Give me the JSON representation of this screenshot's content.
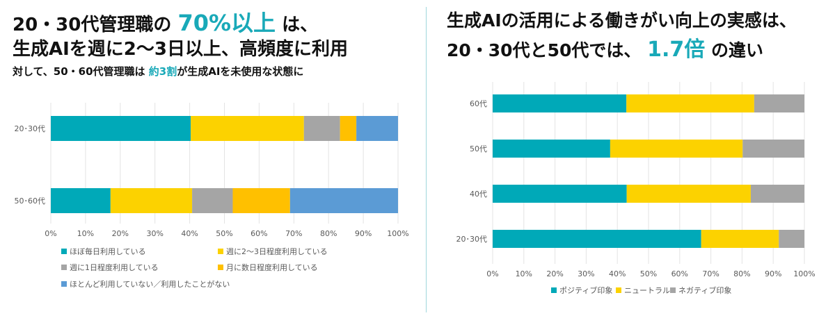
{
  "left": {
    "title_line1_pre": "20・30代管理職の",
    "title_line1_highlight": "70%以上",
    "title_line1_post": "は、",
    "title_line2": "生成AIを週に2〜3日以上、高頻度に利用",
    "subtitle_pre": "対して、50・60代管理職は",
    "subtitle_highlight": "約3割",
    "subtitle_post": "が生成AIを未使用な状態に"
  },
  "right": {
    "title_line1": "生成AIの活用による働きがい向上の実感は、",
    "title_line2_pre": "20・30代と50代では、",
    "title_line2_highlight": "1.7倍",
    "title_line2_post": "の違い"
  },
  "chart_data": [
    {
      "type": "bar",
      "orientation": "horizontal",
      "stacked": true,
      "categories": [
        "20･30代",
        "50･60代"
      ],
      "series": [
        {
          "name": "ほぼ毎日利用している",
          "color": "#00a9b8",
          "values": [
            40.3,
            17.2
          ]
        },
        {
          "name": "週に2〜3日程度利用している",
          "color": "#fcd200",
          "values": [
            32.6,
            23.5
          ]
        },
        {
          "name": "週に1日程度利用している",
          "color": "#a5a5a5",
          "values": [
            10.4,
            11.7
          ]
        },
        {
          "name": "月に数日程度利用している",
          "color": "#ffc000",
          "values": [
            4.7,
            16.5
          ]
        },
        {
          "name": "ほとんど利用していない／利用したことがない",
          "color": "#5b9bd5",
          "values": [
            12.0,
            31.1
          ]
        }
      ],
      "xlim": [
        0,
        100
      ],
      "xticks": [
        "0%",
        "10%",
        "20%",
        "30%",
        "40%",
        "50%",
        "60%",
        "70%",
        "80%",
        "90%",
        "100%"
      ],
      "grid": true,
      "legend": "bottom"
    },
    {
      "type": "bar",
      "orientation": "horizontal",
      "stacked": true,
      "categories": [
        "60代",
        "50代",
        "40代",
        "20･30代"
      ],
      "series": [
        {
          "name": "ポジティブ印象",
          "color": "#00a9b8",
          "values": [
            42.9,
            37.7,
            43.0,
            66.9
          ]
        },
        {
          "name": "ニュートラル",
          "color": "#fcd200",
          "values": [
            41.0,
            42.5,
            39.8,
            24.9
          ]
        },
        {
          "name": "ネガティブ印象",
          "color": "#a5a5a5",
          "values": [
            16.1,
            19.8,
            17.2,
            8.2
          ]
        }
      ],
      "xlim": [
        0,
        100
      ],
      "xticks": [
        "0%",
        "10%",
        "20%",
        "30%",
        "40%",
        "50%",
        "60%",
        "70%",
        "80%",
        "90%",
        "100%"
      ],
      "grid": true,
      "legend": "bottom"
    }
  ]
}
